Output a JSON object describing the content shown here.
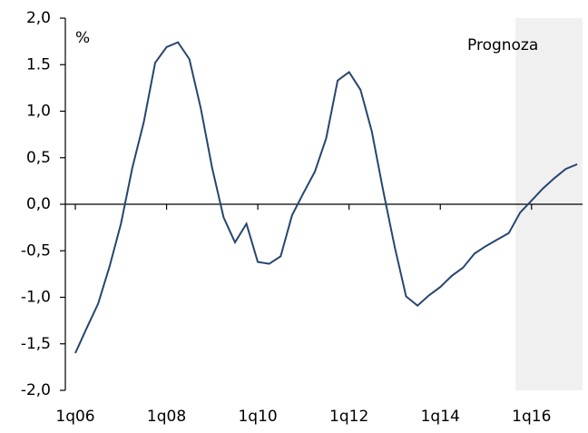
{
  "chart_data": {
    "type": "line",
    "annotations": [
      "%",
      "Prognoza"
    ],
    "categories": [
      "1q06",
      null,
      null,
      null,
      null,
      null,
      null,
      null,
      "1q08",
      null,
      null,
      null,
      null,
      null,
      null,
      null,
      "1q10",
      null,
      null,
      null,
      null,
      null,
      null,
      null,
      "1q12",
      null,
      null,
      null,
      null,
      null,
      null,
      null,
      "1q14",
      null,
      null,
      null,
      null,
      null,
      null,
      null,
      "1q16",
      null,
      null,
      null,
      null
    ],
    "series": [
      {
        "color": "#27466f",
        "values": [
          -1.6,
          -1.33,
          -1.07,
          -0.67,
          -0.21,
          0.39,
          0.88,
          1.52,
          1.69,
          1.74,
          1.56,
          1.03,
          0.39,
          -0.14,
          -0.41,
          -0.21,
          -0.62,
          -0.64,
          -0.56,
          -0.12,
          0.12,
          0.35,
          0.71,
          1.33,
          1.42,
          1.23,
          0.78,
          0.14,
          -0.46,
          -0.99,
          -1.09,
          -0.98,
          -0.89,
          -0.77,
          -0.68,
          -0.53,
          -0.45,
          -0.38,
          -0.31,
          -0.09,
          0.04,
          0.17,
          0.28,
          0.38,
          0.43
        ]
      }
    ],
    "forecast_start": 38.6,
    "forecast_color": "#f0f0f0",
    "ylim": [
      -2,
      2
    ],
    "yticks": [
      {
        "value": 2,
        "label": "2,0"
      },
      1.5,
      {
        "value": 1,
        "label": "1,0"
      },
      {
        "value": 0.5,
        "label": "0,5"
      },
      {
        "value": 0,
        "label": "0,0"
      },
      {
        "value": -0.5,
        "label": "-0,5"
      },
      {
        "value": -1,
        "label": "-1,0"
      },
      {
        "value": -1.5,
        "label": "-1,5"
      },
      {
        "value": -2,
        "label": "-2,0"
      }
    ]
  }
}
